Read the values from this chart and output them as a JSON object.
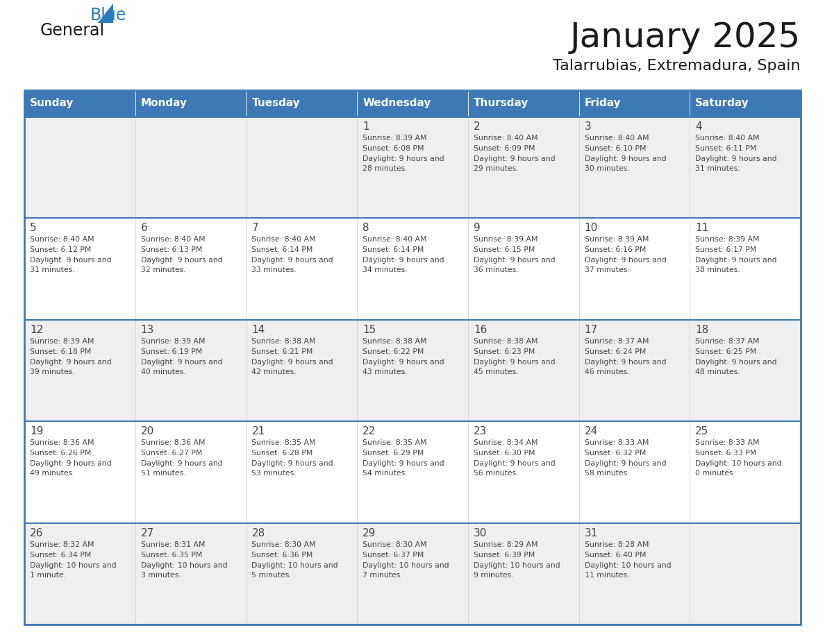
{
  "title": "January 2025",
  "subtitle": "Talarrubias, Extremadura, Spain",
  "header_bg": "#3d7ab5",
  "header_text_color": "#ffffff",
  "day_names": [
    "Sunday",
    "Monday",
    "Tuesday",
    "Wednesday",
    "Thursday",
    "Friday",
    "Saturday"
  ],
  "row_bg_even": "#efefef",
  "row_bg_odd": "#ffffff",
  "border_color": "#3d7ab5",
  "text_color": "#444444",
  "days": [
    {
      "day": 1,
      "col": 3,
      "row": 0,
      "sunrise": "8:39 AM",
      "sunset": "6:08 PM",
      "daylight": "9 hours and 28 minutes"
    },
    {
      "day": 2,
      "col": 4,
      "row": 0,
      "sunrise": "8:40 AM",
      "sunset": "6:09 PM",
      "daylight": "9 hours and 29 minutes"
    },
    {
      "day": 3,
      "col": 5,
      "row": 0,
      "sunrise": "8:40 AM",
      "sunset": "6:10 PM",
      "daylight": "9 hours and 30 minutes"
    },
    {
      "day": 4,
      "col": 6,
      "row": 0,
      "sunrise": "8:40 AM",
      "sunset": "6:11 PM",
      "daylight": "9 hours and 31 minutes"
    },
    {
      "day": 5,
      "col": 0,
      "row": 1,
      "sunrise": "8:40 AM",
      "sunset": "6:12 PM",
      "daylight": "9 hours and 31 minutes"
    },
    {
      "day": 6,
      "col": 1,
      "row": 1,
      "sunrise": "8:40 AM",
      "sunset": "6:13 PM",
      "daylight": "9 hours and 32 minutes"
    },
    {
      "day": 7,
      "col": 2,
      "row": 1,
      "sunrise": "8:40 AM",
      "sunset": "6:14 PM",
      "daylight": "9 hours and 33 minutes"
    },
    {
      "day": 8,
      "col": 3,
      "row": 1,
      "sunrise": "8:40 AM",
      "sunset": "6:14 PM",
      "daylight": "9 hours and 34 minutes"
    },
    {
      "day": 9,
      "col": 4,
      "row": 1,
      "sunrise": "8:39 AM",
      "sunset": "6:15 PM",
      "daylight": "9 hours and 36 minutes"
    },
    {
      "day": 10,
      "col": 5,
      "row": 1,
      "sunrise": "8:39 AM",
      "sunset": "6:16 PM",
      "daylight": "9 hours and 37 minutes"
    },
    {
      "day": 11,
      "col": 6,
      "row": 1,
      "sunrise": "8:39 AM",
      "sunset": "6:17 PM",
      "daylight": "9 hours and 38 minutes"
    },
    {
      "day": 12,
      "col": 0,
      "row": 2,
      "sunrise": "8:39 AM",
      "sunset": "6:18 PM",
      "daylight": "9 hours and 39 minutes"
    },
    {
      "day": 13,
      "col": 1,
      "row": 2,
      "sunrise": "8:39 AM",
      "sunset": "6:19 PM",
      "daylight": "9 hours and 40 minutes"
    },
    {
      "day": 14,
      "col": 2,
      "row": 2,
      "sunrise": "8:38 AM",
      "sunset": "6:21 PM",
      "daylight": "9 hours and 42 minutes"
    },
    {
      "day": 15,
      "col": 3,
      "row": 2,
      "sunrise": "8:38 AM",
      "sunset": "6:22 PM",
      "daylight": "9 hours and 43 minutes"
    },
    {
      "day": 16,
      "col": 4,
      "row": 2,
      "sunrise": "8:38 AM",
      "sunset": "6:23 PM",
      "daylight": "9 hours and 45 minutes"
    },
    {
      "day": 17,
      "col": 5,
      "row": 2,
      "sunrise": "8:37 AM",
      "sunset": "6:24 PM",
      "daylight": "9 hours and 46 minutes"
    },
    {
      "day": 18,
      "col": 6,
      "row": 2,
      "sunrise": "8:37 AM",
      "sunset": "6:25 PM",
      "daylight": "9 hours and 48 minutes"
    },
    {
      "day": 19,
      "col": 0,
      "row": 3,
      "sunrise": "8:36 AM",
      "sunset": "6:26 PM",
      "daylight": "9 hours and 49 minutes"
    },
    {
      "day": 20,
      "col": 1,
      "row": 3,
      "sunrise": "8:36 AM",
      "sunset": "6:27 PM",
      "daylight": "9 hours and 51 minutes"
    },
    {
      "day": 21,
      "col": 2,
      "row": 3,
      "sunrise": "8:35 AM",
      "sunset": "6:28 PM",
      "daylight": "9 hours and 53 minutes"
    },
    {
      "day": 22,
      "col": 3,
      "row": 3,
      "sunrise": "8:35 AM",
      "sunset": "6:29 PM",
      "daylight": "9 hours and 54 minutes"
    },
    {
      "day": 23,
      "col": 4,
      "row": 3,
      "sunrise": "8:34 AM",
      "sunset": "6:30 PM",
      "daylight": "9 hours and 56 minutes"
    },
    {
      "day": 24,
      "col": 5,
      "row": 3,
      "sunrise": "8:33 AM",
      "sunset": "6:32 PM",
      "daylight": "9 hours and 58 minutes"
    },
    {
      "day": 25,
      "col": 6,
      "row": 3,
      "sunrise": "8:33 AM",
      "sunset": "6:33 PM",
      "daylight": "10 hours and 0 minutes"
    },
    {
      "day": 26,
      "col": 0,
      "row": 4,
      "sunrise": "8:32 AM",
      "sunset": "6:34 PM",
      "daylight": "10 hours and 1 minute"
    },
    {
      "day": 27,
      "col": 1,
      "row": 4,
      "sunrise": "8:31 AM",
      "sunset": "6:35 PM",
      "daylight": "10 hours and 3 minutes"
    },
    {
      "day": 28,
      "col": 2,
      "row": 4,
      "sunrise": "8:30 AM",
      "sunset": "6:36 PM",
      "daylight": "10 hours and 5 minutes"
    },
    {
      "day": 29,
      "col": 3,
      "row": 4,
      "sunrise": "8:30 AM",
      "sunset": "6:37 PM",
      "daylight": "10 hours and 7 minutes"
    },
    {
      "day": 30,
      "col": 4,
      "row": 4,
      "sunrise": "8:29 AM",
      "sunset": "6:39 PM",
      "daylight": "10 hours and 9 minutes"
    },
    {
      "day": 31,
      "col": 5,
      "row": 4,
      "sunrise": "8:28 AM",
      "sunset": "6:40 PM",
      "daylight": "10 hours and 11 minutes"
    }
  ],
  "logo_color_general": "#1a1a1a",
  "logo_color_blue": "#2b7bbf",
  "logo_triangle_color": "#2b7bbf"
}
